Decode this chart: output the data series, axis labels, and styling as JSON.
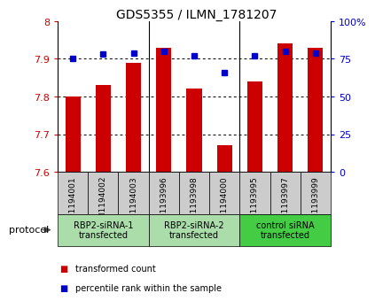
{
  "title": "GDS5355 / ILMN_1781207",
  "samples": [
    "GSM1194001",
    "GSM1194002",
    "GSM1194003",
    "GSM1193996",
    "GSM1193998",
    "GSM1194000",
    "GSM1193995",
    "GSM1193997",
    "GSM1193999"
  ],
  "bar_values": [
    7.8,
    7.83,
    7.89,
    7.93,
    7.82,
    7.67,
    7.84,
    7.94,
    7.93
  ],
  "percentile_values": [
    75,
    78,
    79,
    80,
    77,
    66,
    77,
    80,
    79
  ],
  "ylim_left": [
    7.6,
    8.0
  ],
  "ylim_right": [
    0,
    100
  ],
  "yticks_left": [
    7.6,
    7.7,
    7.8,
    7.9,
    8.0
  ],
  "ytick_labels_left": [
    "7.6",
    "7.7",
    "7.8",
    "7.9",
    "8"
  ],
  "yticks_right": [
    0,
    25,
    50,
    75,
    100
  ],
  "ytick_labels_right": [
    "0",
    "25",
    "50",
    "75",
    "100%"
  ],
  "bar_color": "#cc0000",
  "scatter_color": "#0000cc",
  "bar_bottom": 7.6,
  "groups": [
    {
      "label": "RBP2-siRNA-1\ntransfected",
      "start": 0,
      "end": 3,
      "color": "#aaddaa"
    },
    {
      "label": "RBP2-siRNA-2\ntransfected",
      "start": 3,
      "end": 6,
      "color": "#aaddaa"
    },
    {
      "label": "control siRNA\ntransfected",
      "start": 6,
      "end": 9,
      "color": "#44cc44"
    }
  ],
  "sample_box_color": "#cccccc",
  "group_border_color": "#000000",
  "legend_items": [
    {
      "label": "transformed count",
      "color": "#cc0000"
    },
    {
      "label": "percentile rank within the sample",
      "color": "#0000cc"
    }
  ],
  "protocol_label": "protocol",
  "dotted_grid_lines": [
    7.7,
    7.8,
    7.9
  ],
  "bar_width": 0.5
}
